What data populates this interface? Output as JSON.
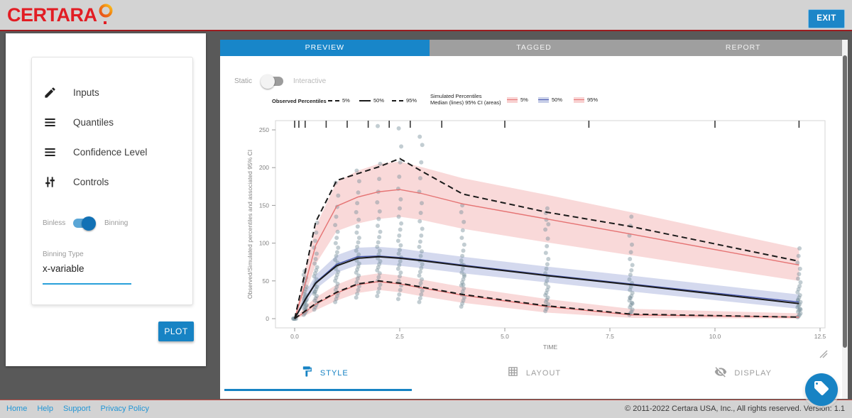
{
  "header": {
    "brand": "CERTARA",
    "exit_label": "EXIT"
  },
  "sidebar": {
    "menu": [
      {
        "icon": "pencil-icon",
        "label": "Inputs"
      },
      {
        "icon": "list-icon",
        "label": "Quantiles"
      },
      {
        "icon": "list-icon",
        "label": "Confidence Level"
      },
      {
        "icon": "sliders-icon",
        "label": "Controls"
      }
    ],
    "bin_toggle": {
      "left_label": "Binless",
      "right_label": "Binning",
      "state": "on"
    },
    "binning_type_label": "Binning Type",
    "binning_type_value": "x-variable",
    "plot_button": "PLOT"
  },
  "tabs": [
    {
      "label": "PREVIEW",
      "active": true
    },
    {
      "label": "TAGGED",
      "active": false
    },
    {
      "label": "REPORT",
      "active": false
    }
  ],
  "view_toggle": {
    "left_label": "Static",
    "right_label": "Interactive",
    "state": "off"
  },
  "legend": {
    "observed_title": "Observed Percentiles",
    "observed_items": [
      "5%",
      "50%",
      "95%"
    ],
    "simulated_title_line1": "Simulated Percentiles",
    "simulated_title_line2": "Median (lines) 95% CI (areas)",
    "simulated_items": [
      "5%",
      "50%",
      "95%"
    ]
  },
  "chart_data": {
    "type": "scatter",
    "subtype": "visual-predictive-check",
    "title": "",
    "xlabel": "TIME",
    "ylabel": "Observed/Simulated percentiles and associated 95% CI",
    "xlim": [
      0,
      12.5
    ],
    "ylim": [
      0,
      265
    ],
    "grid": false,
    "xticks": [
      0,
      2.5,
      5,
      7.5,
      10,
      12.5
    ],
    "xtick_labels": [
      "0.0",
      "2.5",
      "5.0",
      "7.5",
      "10.0",
      "12.5"
    ],
    "yticks": [
      0,
      50,
      100,
      150,
      200,
      250
    ],
    "bin_boundaries": [
      0,
      0.1,
      0.25,
      0.75,
      1.25,
      1.75,
      2.25,
      2.75,
      3.5,
      5,
      7,
      10,
      12
    ],
    "times": [
      0,
      0.25,
      0.5,
      1,
      1.5,
      2,
      2.5,
      3,
      4,
      6,
      8,
      12
    ],
    "series": [
      {
        "name": "simulated_95_CI",
        "legend": "95%",
        "line_color": "#e57373",
        "band_color": "rgba(239,154,154,0.38)",
        "median": [
          0,
          46,
          97,
          149,
          161,
          168,
          171,
          166,
          152,
          132,
          112,
          71
        ],
        "ci_lower": [
          0,
          32,
          72,
          116,
          126,
          132,
          135,
          131,
          119,
          101,
          84,
          50
        ],
        "ci_upper": [
          0,
          64,
          122,
          181,
          196,
          205,
          208,
          201,
          186,
          164,
          141,
          93
        ]
      },
      {
        "name": "simulated_50_CI",
        "legend": "50%",
        "line_color": "#4a5ab0",
        "band_color": "rgba(131,146,205,0.35)",
        "median": [
          0,
          26,
          48,
          72,
          82,
          83,
          81,
          78,
          71,
          58,
          46,
          22
        ],
        "ci_lower": [
          0,
          19,
          39,
          61,
          71,
          72,
          70,
          67,
          60,
          48,
          36,
          13
        ],
        "ci_upper": [
          0,
          34,
          58,
          84,
          94,
          95,
          93,
          89,
          82,
          69,
          57,
          32
        ]
      },
      {
        "name": "simulated_5_CI",
        "legend": "5%",
        "line_color": "#e57373",
        "band_color": "rgba(239,154,154,0.38)",
        "median": [
          0,
          9,
          19,
          34,
          45,
          49,
          46,
          41,
          31,
          16,
          5,
          2
        ],
        "ci_lower": [
          0,
          4,
          11,
          24,
          34,
          38,
          35,
          30,
          21,
          8,
          1,
          0
        ],
        "ci_upper": [
          0,
          16,
          28,
          45,
          56,
          60,
          57,
          52,
          42,
          26,
          13,
          7
        ]
      },
      {
        "name": "observed_95",
        "legend": "95%",
        "style": "dashed",
        "values": [
          0,
          62,
          128,
          183,
          192,
          201,
          212,
          196,
          165,
          141,
          122,
          76
        ]
      },
      {
        "name": "observed_50",
        "legend": "50%",
        "style": "solid",
        "values": [
          0,
          25,
          47,
          70,
          80,
          82,
          80,
          77,
          70,
          57,
          45,
          20
        ]
      },
      {
        "name": "observed_5",
        "legend": "5%",
        "style": "dashed",
        "values": [
          0,
          10,
          20,
          35,
          46,
          50,
          47,
          42,
          32,
          17,
          6,
          2
        ]
      }
    ],
    "scatter": {
      "name": "observations",
      "color": "#78909c",
      "columns": [
        {
          "t": 0,
          "y": [
            0,
            0,
            0,
            0,
            0,
            0
          ]
        },
        {
          "t": 0.25,
          "y": [
            5,
            7,
            9,
            11,
            13,
            15,
            17,
            19,
            21,
            23,
            25,
            27,
            29,
            31,
            33,
            36,
            39,
            42,
            46,
            50,
            54,
            58,
            63,
            12,
            18,
            24
          ]
        },
        {
          "t": 0.5,
          "y": [
            12,
            15,
            18,
            21,
            24,
            27,
            30,
            33,
            36,
            39,
            42,
            45,
            48,
            52,
            56,
            60,
            64,
            68,
            73,
            79,
            86,
            94,
            103,
            114,
            127,
            35
          ]
        },
        {
          "t": 1,
          "y": [
            22,
            26,
            30,
            34,
            38,
            42,
            46,
            50,
            54,
            58,
            62,
            66,
            70,
            74,
            78,
            83,
            88,
            94,
            100,
            107,
            115,
            124,
            135,
            148,
            163,
            180
          ]
        },
        {
          "t": 1.5,
          "y": [
            28,
            33,
            38,
            43,
            48,
            53,
            57,
            61,
            65,
            69,
            73,
            77,
            81,
            85,
            90,
            95,
            101,
            107,
            114,
            122,
            131,
            141,
            153,
            167,
            182,
            196
          ]
        },
        {
          "t": 2,
          "y": [
            30,
            35,
            40,
            45,
            50,
            55,
            60,
            64,
            68,
            72,
            76,
            80,
            85,
            90,
            95,
            101,
            108,
            115,
            123,
            132,
            142,
            154,
            168,
            185,
            205,
            255
          ]
        },
        {
          "t": 2.5,
          "y": [
            26,
            32,
            38,
            44,
            50,
            56,
            61,
            66,
            71,
            76,
            81,
            86,
            91,
            97,
            103,
            110,
            118,
            126,
            135,
            146,
            158,
            172,
            188,
            207,
            228,
            252
          ]
        },
        {
          "t": 3,
          "y": [
            22,
            27,
            32,
            37,
            42,
            47,
            52,
            57,
            62,
            67,
            72,
            77,
            83,
            89,
            95,
            102,
            110,
            119,
            129,
            140,
            153,
            168,
            186,
            207,
            230,
            241
          ]
        },
        {
          "t": 4,
          "y": [
            16,
            20,
            24,
            28,
            32,
            36,
            40,
            44,
            48,
            52,
            56,
            61,
            66,
            71,
            77,
            83,
            90,
            98,
            107,
            117,
            128,
            141,
            150,
            45,
            58,
            72
          ]
        },
        {
          "t": 6,
          "y": [
            10,
            13,
            16,
            19,
            22,
            25,
            28,
            31,
            34,
            38,
            42,
            46,
            50,
            55,
            60,
            66,
            72,
            79,
            87,
            96,
            106,
            118,
            131,
            146,
            125,
            140
          ]
        },
        {
          "t": 8,
          "y": [
            5,
            7,
            9,
            12,
            15,
            18,
            21,
            24,
            27,
            30,
            34,
            38,
            42,
            47,
            52,
            58,
            64,
            71,
            79,
            88,
            98,
            110,
            123,
            135,
            20,
            28
          ]
        },
        {
          "t": 12,
          "y": [
            2,
            3,
            5,
            7,
            9,
            11,
            13,
            15,
            17,
            19,
            22,
            25,
            28,
            31,
            35,
            39,
            43,
            48,
            53,
            59,
            66,
            74,
            83,
            93,
            12,
            24
          ]
        }
      ]
    }
  },
  "bottom_tabs": [
    {
      "label": "STYLE",
      "icon": "paint-roller-icon",
      "active": true
    },
    {
      "label": "LAYOUT",
      "icon": "grid-icon",
      "active": false
    },
    {
      "label": "DISPLAY",
      "icon": "eye-off-icon",
      "active": false
    }
  ],
  "footer": {
    "links": [
      "Home",
      "Help",
      "Support",
      "Privacy Policy"
    ],
    "copyright": "© 2011-2022 Certara USA, Inc., All rights reserved. Version: 1.1"
  },
  "colors": {
    "accent_blue": "#1783c4",
    "tab_active_blue": "#1886c9",
    "brand_red": "#e21d24",
    "header_gray": "#d3d3d3",
    "content_gray": "#595959",
    "observed_line": "#1a1a1a",
    "simulated_5_95_line": "#e57373",
    "simulated_50_line": "#4a5ab0",
    "scatter_point": "#78909c",
    "link_blue": "#2196d6"
  }
}
